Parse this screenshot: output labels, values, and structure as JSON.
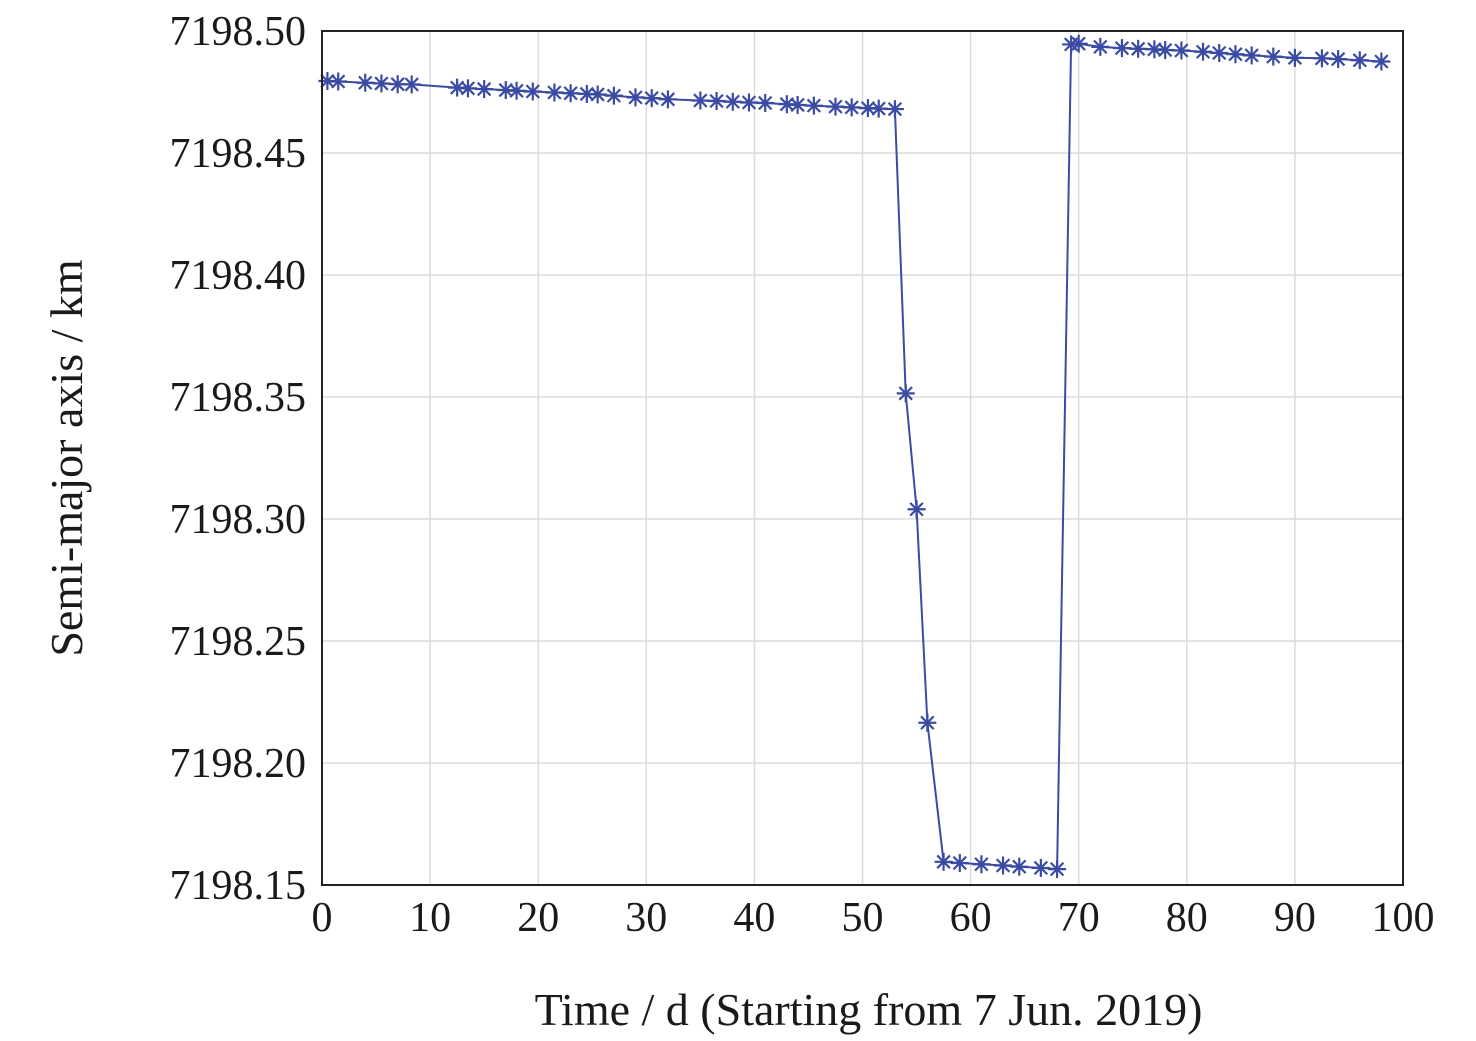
{
  "chart_data": {
    "type": "line",
    "title": "",
    "xlabel": "Time / d (Starting from 7 Jun. 2019)",
    "ylabel": "Semi-major axis / km",
    "xlim": [
      0,
      100
    ],
    "ylim": [
      7198.15,
      7198.5
    ],
    "xticks": [
      0,
      10,
      20,
      30,
      40,
      50,
      60,
      70,
      80,
      90,
      100
    ],
    "xtick_labels": [
      "0",
      "10",
      "20",
      "30",
      "40",
      "50",
      "60",
      "70",
      "80",
      "90",
      "100"
    ],
    "yticks": [
      7198.15,
      7198.2,
      7198.25,
      7198.3,
      7198.35,
      7198.4,
      7198.45,
      7198.5
    ],
    "ytick_labels": [
      "7198.15",
      "7198.20",
      "7198.25",
      "7198.30",
      "7198.35",
      "7198.40",
      "7198.45",
      "7198.50"
    ],
    "grid": true,
    "marker": "asterisk",
    "color": "#3b4ba3",
    "series": [
      {
        "x": [
          0.5,
          1.5,
          4,
          5.5,
          7,
          8.3,
          12.5,
          13.5,
          15,
          17,
          18,
          19.5,
          21.5,
          23,
          24.5,
          25.5,
          27,
          29,
          30.5,
          32,
          35,
          36.5,
          38,
          39.5,
          41,
          43,
          44,
          45.5,
          47.5,
          49,
          50.5,
          51.5,
          53,
          54,
          55,
          56,
          57.5,
          59,
          61,
          63,
          64.5,
          66.5,
          68,
          69.3,
          70,
          72,
          74,
          75.5,
          77,
          78,
          79.5,
          81.5,
          83,
          84.5,
          86,
          88,
          90,
          92.5,
          94,
          96,
          98
        ],
        "y": [
          7198.4795,
          7198.4793,
          7198.4788,
          7198.4785,
          7198.4782,
          7198.4781,
          7198.4768,
          7198.4765,
          7198.4762,
          7198.4758,
          7198.4755,
          7198.4752,
          7198.4748,
          7198.4745,
          7198.4742,
          7198.474,
          7198.4735,
          7198.4728,
          7198.4725,
          7198.472,
          7198.4715,
          7198.4713,
          7198.471,
          7198.4707,
          7198.4705,
          7198.47,
          7198.4697,
          7198.4694,
          7198.469,
          7198.4687,
          7198.4684,
          7198.4682,
          7198.468,
          7198.3515,
          7198.304,
          7198.2165,
          7198.1595,
          7198.159,
          7198.1585,
          7198.158,
          7198.1575,
          7198.157,
          7198.1565,
          7198.4945,
          7198.4948,
          7198.4935,
          7198.493,
          7198.4927,
          7198.4925,
          7198.4922,
          7198.492,
          7198.4915,
          7198.491,
          7198.4905,
          7198.49,
          7198.4895,
          7198.489,
          7198.4888,
          7198.4885,
          7198.488,
          7198.4875
        ]
      }
    ]
  }
}
